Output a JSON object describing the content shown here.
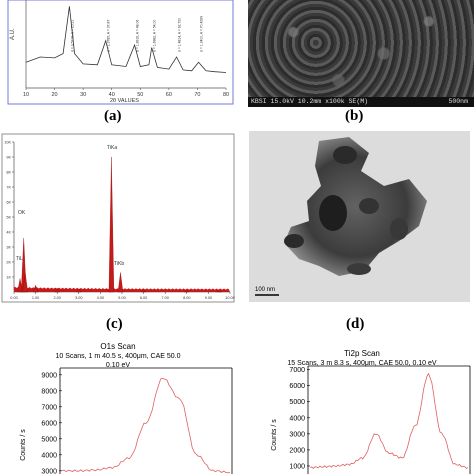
{
  "labels": {
    "a": "(a)",
    "b": "(b)",
    "c": "(c)",
    "d": "(d)"
  },
  "xrd": {
    "ylabel": "A.U.",
    "xlabel": "2θ VALUES",
    "xticks": [
      "10",
      "20",
      "30",
      "40",
      "50",
      "60",
      "70",
      "80"
    ],
    "annotations": [
      "d = 3.5216, A = 25.21",
      "d = 2.3785, A = 37.87",
      "d = 1.8916, A = 48.06",
      "d = 1.6982, A = 54.00",
      "d = 1.4814, A = 62.720",
      "d = 1.3400, A = 70.4269"
    ]
  },
  "sem": {
    "caption": "KBSI 15.0kV 10.2mm x100k SE(M)",
    "scale": "500nm"
  },
  "eds": {
    "title": "",
    "yticks": [
      "10K",
      "9K",
      "8K",
      "7K",
      "6K",
      "5K",
      "4K",
      "3K",
      "2K",
      "1K"
    ],
    "xticks": [
      "0.00",
      "1.00",
      "2.00",
      "3.00",
      "4.00",
      "5.00",
      "6.00",
      "7.00",
      "8.00",
      "9.00",
      "10.00"
    ],
    "peak_labels": [
      "OK",
      "TiL",
      "TiKa",
      "TiKb"
    ]
  },
  "tem": {
    "scale": "100 nm"
  },
  "o1s": {
    "title_lines": [
      "O1s Scan",
      "10 Scans,  1 m 40.5 s,  400μm,  CAE 50.0",
      "0.10 eV"
    ],
    "ylabel": "Counts / s",
    "yticks": [
      "9000",
      "8000",
      "7000",
      "6000",
      "5000",
      "4000",
      "3000"
    ]
  },
  "ti2p": {
    "title_lines": [
      "Ti2p Scan",
      "15 Scans,  3 m 8.3 s,  400μm,  CAE 50.0,  0.10 eV"
    ],
    "ylabel": "Counts / s",
    "yticks": [
      "7000",
      "6000",
      "5000",
      "4000",
      "3000",
      "2000",
      "1000"
    ]
  },
  "chart_data": [
    {
      "type": "line",
      "title": "",
      "xlabel": "2θ VALUES",
      "ylabel": "A.U.",
      "xlim": [
        10,
        80
      ],
      "x": [
        10,
        15,
        20,
        23,
        25.2,
        27,
        30,
        35,
        37.9,
        40,
        45,
        48.0,
        50,
        53,
        54.0,
        56,
        60,
        62.7,
        65,
        68,
        70.4,
        73,
        76,
        80
      ],
      "values": [
        0.3,
        0.36,
        0.35,
        0.4,
        0.95,
        0.4,
        0.28,
        0.27,
        0.55,
        0.27,
        0.25,
        0.5,
        0.25,
        0.27,
        0.47,
        0.24,
        0.22,
        0.36,
        0.21,
        0.2,
        0.3,
        0.2,
        0.19,
        0.18
      ]
    },
    {
      "type": "bar",
      "title": "",
      "xlabel": "",
      "ylabel": "",
      "xlim": [
        0,
        10
      ],
      "ylim": [
        0,
        10000
      ],
      "x": [
        0.28,
        0.45,
        0.52,
        1.0,
        2.0,
        3.0,
        4.51,
        4.93,
        6.0,
        8.0,
        9.5
      ],
      "values": [
        900,
        3600,
        1300,
        450,
        250,
        200,
        9000,
        1300,
        150,
        100,
        80
      ]
    },
    {
      "type": "line",
      "title": "O1s Scan",
      "ylabel": "Counts / s",
      "ylim": [
        2800,
        9300
      ],
      "x": [
        0,
        1,
        2,
        3,
        4,
        5,
        6,
        7,
        8,
        9,
        10
      ],
      "values": [
        3000,
        3000,
        3050,
        3200,
        3800,
        6000,
        8800,
        7500,
        4000,
        3000,
        2900
      ]
    },
    {
      "type": "line",
      "title": "Ti2p Scan",
      "ylabel": "Counts / s",
      "ylim": [
        500,
        7100
      ],
      "x": [
        0,
        1,
        2,
        3,
        4,
        5,
        6,
        7,
        8,
        9,
        10,
        11,
        12
      ],
      "values": [
        900,
        950,
        1000,
        1100,
        1500,
        3000,
        1800,
        1500,
        3500,
        6700,
        3000,
        1100,
        900
      ]
    }
  ]
}
